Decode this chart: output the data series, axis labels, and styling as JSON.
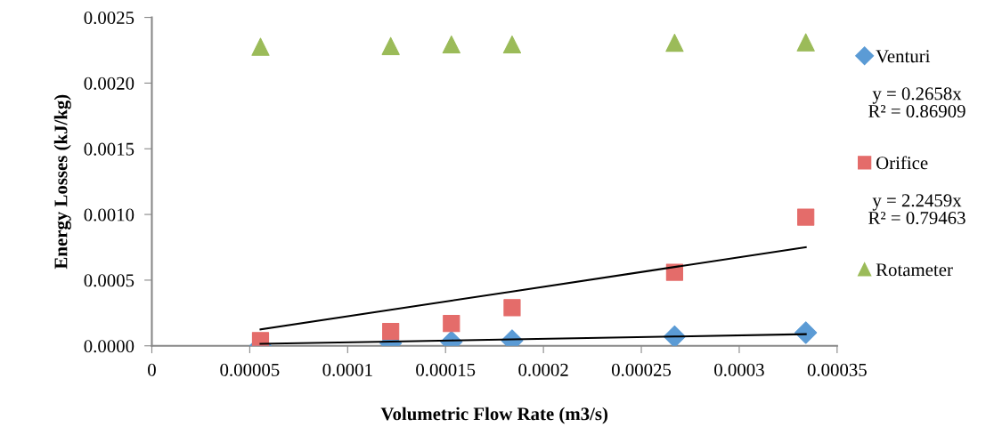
{
  "chart_data": {
    "type": "scatter",
    "xlabel": "Volumetric Flow Rate (m3/s)",
    "ylabel": "Energy Losses (kJ/kg)",
    "x": [
      5.55e-05,
      0.000122,
      0.000153,
      0.000184,
      0.000267,
      0.000334
    ],
    "series": [
      {
        "name": "Venturi",
        "color": "#5b9bd5",
        "marker": "diamond",
        "values": [
          0.0,
          2e-05,
          3e-05,
          4e-05,
          7e-05,
          0.0001
        ]
      },
      {
        "name": "Orifice",
        "color": "#e46c6a",
        "marker": "square",
        "values": [
          4e-05,
          0.00011,
          0.00017,
          0.00029,
          0.00056,
          0.00098
        ]
      },
      {
        "name": "Rotameter",
        "color": "#9bbb59",
        "marker": "triangle",
        "values": [
          0.002276,
          0.002282,
          0.002294,
          0.002294,
          0.002307,
          0.00231
        ]
      },
      {
        "type": "line",
        "color": "#000000",
        "marker": "none",
        "values": [
          1.5e-05,
          3.2e-05,
          4.1e-05,
          4.9e-05,
          7.1e-05,
          8.9e-05
        ]
      },
      {
        "type": "line",
        "color": "#000000",
        "marker": "none",
        "values": [
          0.000125,
          0.000274,
          0.000344,
          0.000413,
          0.0006,
          0.00075
        ]
      }
    ],
    "annotations": [
      "y = 0.2658x\nR² = 0.86909",
      "y = 2.2459x\nR² = 0.79463"
    ],
    "xlim": [
      0,
      0.00035
    ],
    "xticks": [
      0,
      {
        "value": 5e-05,
        "label": "0.00005"
      },
      0.0001,
      0.00015,
      0.0002,
      0.00025,
      0.0003,
      0.00035
    ],
    "ylim": [
      0,
      0.0025
    ],
    "yticks": [
      {
        "value": 0,
        "label": "0.0000"
      },
      0.0005,
      {
        "value": 0.001,
        "label": "0.0010"
      },
      0.0015,
      {
        "value": 0.002,
        "label": "0.0020"
      },
      0.0025
    ],
    "grid": false,
    "legend": "right"
  }
}
